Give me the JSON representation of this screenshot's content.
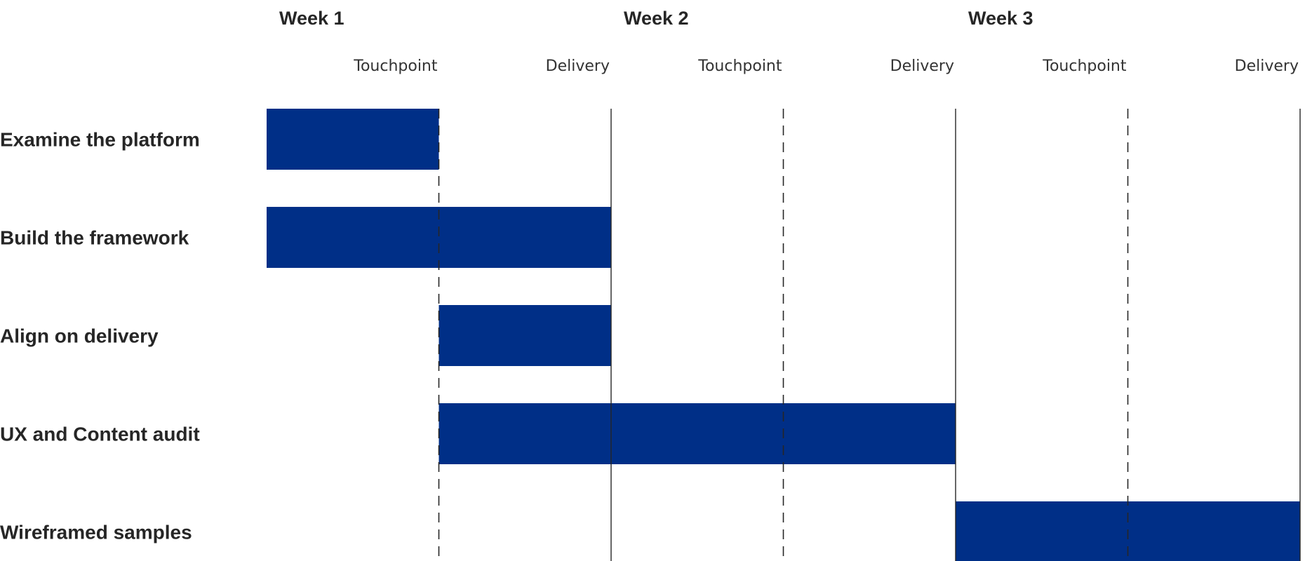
{
  "chart_data": {
    "type": "bar",
    "subtype": "gantt",
    "x_unit": "week",
    "x_range": [
      0,
      3
    ],
    "weeks": [
      {
        "label": "Week 1",
        "start": 0
      },
      {
        "label": "Week 2",
        "start": 1
      },
      {
        "label": "Week 3",
        "start": 2
      }
    ],
    "milestones": [
      {
        "label": "Touchpoint",
        "at": 0.5,
        "style": "dashed"
      },
      {
        "label": "Delivery",
        "at": 1.0,
        "style": "solid"
      },
      {
        "label": "Touchpoint",
        "at": 1.5,
        "style": "dashed"
      },
      {
        "label": "Delivery",
        "at": 2.0,
        "style": "solid"
      },
      {
        "label": "Touchpoint",
        "at": 2.5,
        "style": "dashed"
      },
      {
        "label": "Delivery",
        "at": 3.0,
        "style": "solid"
      }
    ],
    "tasks": [
      {
        "name": "Examine the platform",
        "start": 0.0,
        "end": 0.5
      },
      {
        "name": "Build the framework",
        "start": 0.0,
        "end": 1.0
      },
      {
        "name": "Align on delivery",
        "start": 0.5,
        "end": 1.0
      },
      {
        "name": "UX and Content audit",
        "start": 0.5,
        "end": 2.0
      },
      {
        "name": "Wireframed samples",
        "start": 2.0,
        "end": 3.0
      }
    ],
    "title": "",
    "xlabel": "",
    "ylabel": "",
    "grid": true,
    "legend": "none",
    "colors": {
      "bar": "#002F87",
      "gridline": "#262626",
      "text": "#262626"
    }
  }
}
